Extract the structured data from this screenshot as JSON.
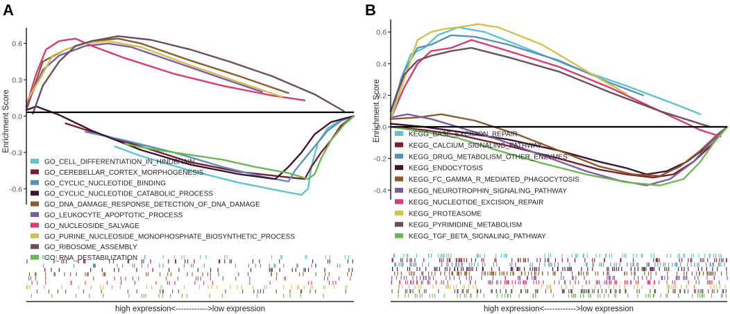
{
  "chart_data": [
    {
      "panel": "A",
      "type": "line",
      "ylabel": "Enrichment Score",
      "xlabel": "high expression<------------>low expression",
      "yticks": [
        -0.6,
        -0.3,
        0.0,
        0.3,
        0.6
      ],
      "ylim": [
        -0.73,
        0.73
      ],
      "series": [
        {
          "name": "GO_CELL_DIFFERENTIATION_IN_HINDBRAIN",
          "color": "#5bc4cf",
          "x": [
            0.27,
            0.35,
            0.5,
            0.65,
            0.78,
            0.84,
            0.86,
            0.87,
            0.89,
            0.92,
            0.95,
            1.0
          ],
          "y": [
            -0.25,
            -0.33,
            -0.45,
            -0.55,
            -0.62,
            -0.65,
            -0.6,
            -0.42,
            -0.22,
            -0.1,
            -0.05,
            0.0
          ]
        },
        {
          "name": "GO_CEREBELLAR_CORTEX_MORPHOGENESIS",
          "color": "#7b1d2f",
          "x": [
            0.12,
            0.2,
            0.35,
            0.5,
            0.65,
            0.78,
            0.85,
            0.87,
            0.9,
            0.93,
            0.96,
            1.0
          ],
          "y": [
            -0.06,
            -0.13,
            -0.25,
            -0.38,
            -0.46,
            -0.5,
            -0.52,
            -0.42,
            -0.3,
            -0.2,
            -0.08,
            0.0
          ]
        },
        {
          "name": "GO_CYCLIC_NUCLEOTIDE_BINDING",
          "color": "#5b8ec0",
          "x": [
            0.18,
            0.3,
            0.45,
            0.6,
            0.72,
            0.8,
            0.82,
            0.85,
            0.88,
            0.92,
            0.96,
            1.0
          ],
          "y": [
            -0.13,
            -0.2,
            -0.3,
            -0.42,
            -0.5,
            -0.54,
            -0.45,
            -0.35,
            -0.25,
            -0.12,
            -0.04,
            0.0
          ]
        },
        {
          "name": "GO_CYCLIC_NUCLEOTIDE_CATABOLIC_PROCESS",
          "color": "#3d1530",
          "x": [
            0.0,
            0.03,
            0.1,
            0.2,
            0.35,
            0.5,
            0.65,
            0.76,
            0.8,
            0.84,
            0.88,
            0.93,
            0.97,
            1.0
          ],
          "y": [
            0.05,
            0.08,
            0.01,
            -0.12,
            -0.28,
            -0.4,
            -0.48,
            -0.52,
            -0.42,
            -0.3,
            -0.15,
            -0.05,
            -0.02,
            0.0
          ]
        },
        {
          "name": "GO_DNA_DAMAGE_RESPONSE_DETECTION_OF_DNA_DAMAGE",
          "color": "#8b5a2b",
          "x": [
            0.0,
            0.05,
            0.12,
            0.2,
            0.28,
            0.35,
            0.5,
            0.65,
            0.8
          ],
          "y": [
            0.05,
            0.45,
            0.55,
            0.62,
            0.64,
            0.6,
            0.46,
            0.33,
            0.19
          ]
        },
        {
          "name": "GO_LEUKOCYTE_APOPTOTIC_PROCESS",
          "color": "#7b5aa8",
          "x": [
            0.0,
            0.05,
            0.1,
            0.18,
            0.25,
            0.32,
            0.45,
            0.6,
            0.72
          ],
          "y": [
            0.08,
            0.38,
            0.5,
            0.58,
            0.6,
            0.57,
            0.45,
            0.31,
            0.2
          ]
        },
        {
          "name": "GO_NUCLEOSIDE_SALVAGE",
          "color": "#d93a73",
          "x": [
            0.0,
            0.03,
            0.06,
            0.1,
            0.15,
            0.2,
            0.3,
            0.45,
            0.6,
            0.75,
            0.85
          ],
          "y": [
            0.08,
            0.35,
            0.55,
            0.62,
            0.64,
            0.58,
            0.48,
            0.35,
            0.25,
            0.17,
            0.13
          ]
        },
        {
          "name": "GO_PURINE_NUCLEOSIDE_MONOPHOSPHATE_BIOSYNTHETIC_PROCESS",
          "color": "#d4c04c",
          "x": [
            0.0,
            0.04,
            0.08,
            0.12,
            0.18,
            0.25,
            0.35,
            0.5,
            0.65,
            0.78
          ],
          "y": [
            0.12,
            0.3,
            0.5,
            0.55,
            0.6,
            0.62,
            0.57,
            0.42,
            0.28,
            0.16
          ]
        },
        {
          "name": "GO_RIBOSOME_ASSEMBLY",
          "color": "#6b4d5f",
          "x": [
            0.02,
            0.05,
            0.1,
            0.15,
            0.2,
            0.28,
            0.38,
            0.5,
            0.62,
            0.75,
            0.88,
            0.97
          ],
          "y": [
            0.02,
            0.25,
            0.45,
            0.58,
            0.62,
            0.66,
            0.63,
            0.55,
            0.45,
            0.33,
            0.18,
            0.04
          ]
        },
        {
          "name": "GO_RNA_DESTABILIZATION",
          "color": "#6ab850",
          "x": [
            0.3,
            0.4,
            0.5,
            0.6,
            0.7,
            0.8,
            0.86,
            0.88,
            0.9,
            0.93,
            0.97,
            1.0
          ],
          "y": [
            -0.23,
            -0.28,
            -0.32,
            -0.36,
            -0.42,
            -0.47,
            -0.52,
            -0.48,
            -0.35,
            -0.2,
            -0.07,
            0.0
          ]
        }
      ]
    },
    {
      "panel": "B",
      "type": "line",
      "ylabel": "Enrichment Score",
      "xlabel": "high expression<------------>low expression",
      "yticks": [
        -0.4,
        -0.2,
        0.0,
        0.2,
        0.4,
        0.6
      ],
      "ylim": [
        -0.46,
        0.68
      ],
      "series": [
        {
          "name": "KEGG_BASE_EXCISION_REPAIR",
          "color": "#5bc4cf",
          "x": [
            0.0,
            0.03,
            0.06,
            0.1,
            0.14,
            0.2,
            0.28,
            0.4,
            0.55,
            0.7,
            0.85,
            0.92
          ],
          "y": [
            0.05,
            0.3,
            0.46,
            0.5,
            0.58,
            0.63,
            0.6,
            0.5,
            0.37,
            0.26,
            0.14,
            0.08
          ]
        },
        {
          "name": "KEGG_CALCIUM_SIGNALING_PATHWAY",
          "color": "#7b1d2f",
          "x": [
            0.0,
            0.1,
            0.2,
            0.35,
            0.5,
            0.62,
            0.7,
            0.78,
            0.84,
            0.9,
            0.95,
            0.98,
            1.0
          ],
          "y": [
            0.0,
            -0.02,
            -0.05,
            -0.12,
            -0.2,
            -0.27,
            -0.3,
            -0.32,
            -0.3,
            -0.22,
            -0.12,
            -0.05,
            0.0
          ]
        },
        {
          "name": "KEGG_DRUG_METABOLISM_OTHER_ENZYMES",
          "color": "#5b8ec0",
          "x": [
            0.0,
            0.04,
            0.08,
            0.12,
            0.18,
            0.25,
            0.35,
            0.5,
            0.65,
            0.75
          ],
          "y": [
            0.1,
            0.35,
            0.5,
            0.52,
            0.58,
            0.57,
            0.52,
            0.42,
            0.28,
            0.2
          ]
        },
        {
          "name": "KEGG_ENDOCYTOSIS",
          "color": "#3d1530",
          "x": [
            0.0,
            0.1,
            0.2,
            0.35,
            0.5,
            0.62,
            0.7,
            0.76,
            0.82,
            0.88,
            0.93,
            0.97,
            1.0
          ],
          "y": [
            0.02,
            0.0,
            -0.03,
            -0.08,
            -0.15,
            -0.22,
            -0.26,
            -0.3,
            -0.28,
            -0.22,
            -0.14,
            -0.05,
            0.0
          ]
        },
        {
          "name": "KEGG_FC_GAMMA_R_MEDIATED_PHAGOCYTOSIS",
          "color": "#8b5a2b",
          "x": [
            0.0,
            0.08,
            0.15,
            0.25,
            0.38,
            0.5,
            0.62,
            0.72,
            0.8,
            0.86,
            0.92,
            0.97,
            1.0
          ],
          "y": [
            0.05,
            0.06,
            0.08,
            0.04,
            -0.05,
            -0.15,
            -0.25,
            -0.3,
            -0.31,
            -0.25,
            -0.15,
            -0.05,
            0.0
          ]
        },
        {
          "name": "KEGG_NEUROTROPHIN_SIGNALING_PATHWAY",
          "color": "#7b5aa8",
          "x": [
            0.0,
            0.05,
            0.12,
            0.2,
            0.32,
            0.45,
            0.58,
            0.68,
            0.76,
            0.83,
            0.9,
            0.95,
            1.0
          ],
          "y": [
            0.06,
            0.08,
            0.05,
            0.0,
            -0.08,
            -0.18,
            -0.28,
            -0.34,
            -0.37,
            -0.33,
            -0.22,
            -0.1,
            0.0
          ]
        },
        {
          "name": "KEGG_NUCLEOTIDE_EXCISION_REPAIR",
          "color": "#d93a73",
          "x": [
            0.0,
            0.04,
            0.08,
            0.12,
            0.18,
            0.24,
            0.35,
            0.5,
            0.65,
            0.8,
            0.92,
            0.98
          ],
          "y": [
            0.05,
            0.25,
            0.4,
            0.48,
            0.5,
            0.55,
            0.48,
            0.38,
            0.25,
            0.1,
            -0.02,
            -0.06
          ]
        },
        {
          "name": "KEGG_PROTEASOME",
          "color": "#d4c04c",
          "x": [
            0.0,
            0.04,
            0.08,
            0.12,
            0.16,
            0.2,
            0.26,
            0.32,
            0.45,
            0.6,
            0.7
          ],
          "y": [
            0.05,
            0.3,
            0.55,
            0.6,
            0.62,
            0.63,
            0.65,
            0.63,
            0.52,
            0.33,
            0.21
          ]
        },
        {
          "name": "KEGG_PYRIMIDINE_METABOLISM",
          "color": "#6b4d5f",
          "x": [
            0.0,
            0.04,
            0.08,
            0.12,
            0.18,
            0.24,
            0.35,
            0.5,
            0.65,
            0.8,
            0.95
          ],
          "y": [
            0.1,
            0.33,
            0.42,
            0.45,
            0.48,
            0.5,
            0.44,
            0.35,
            0.22,
            0.1,
            0.0
          ]
        },
        {
          "name": "KEGG_TGF_BETA_SIGNALING_PATHWAY",
          "color": "#6ab850",
          "x": [
            0.0,
            0.1,
            0.2,
            0.32,
            0.45,
            0.58,
            0.7,
            0.8,
            0.87,
            0.92,
            0.96,
            1.0
          ],
          "y": [
            0.0,
            -0.03,
            -0.07,
            -0.15,
            -0.23,
            -0.3,
            -0.35,
            -0.37,
            -0.33,
            -0.22,
            -0.1,
            0.0
          ]
        }
      ]
    }
  ]
}
